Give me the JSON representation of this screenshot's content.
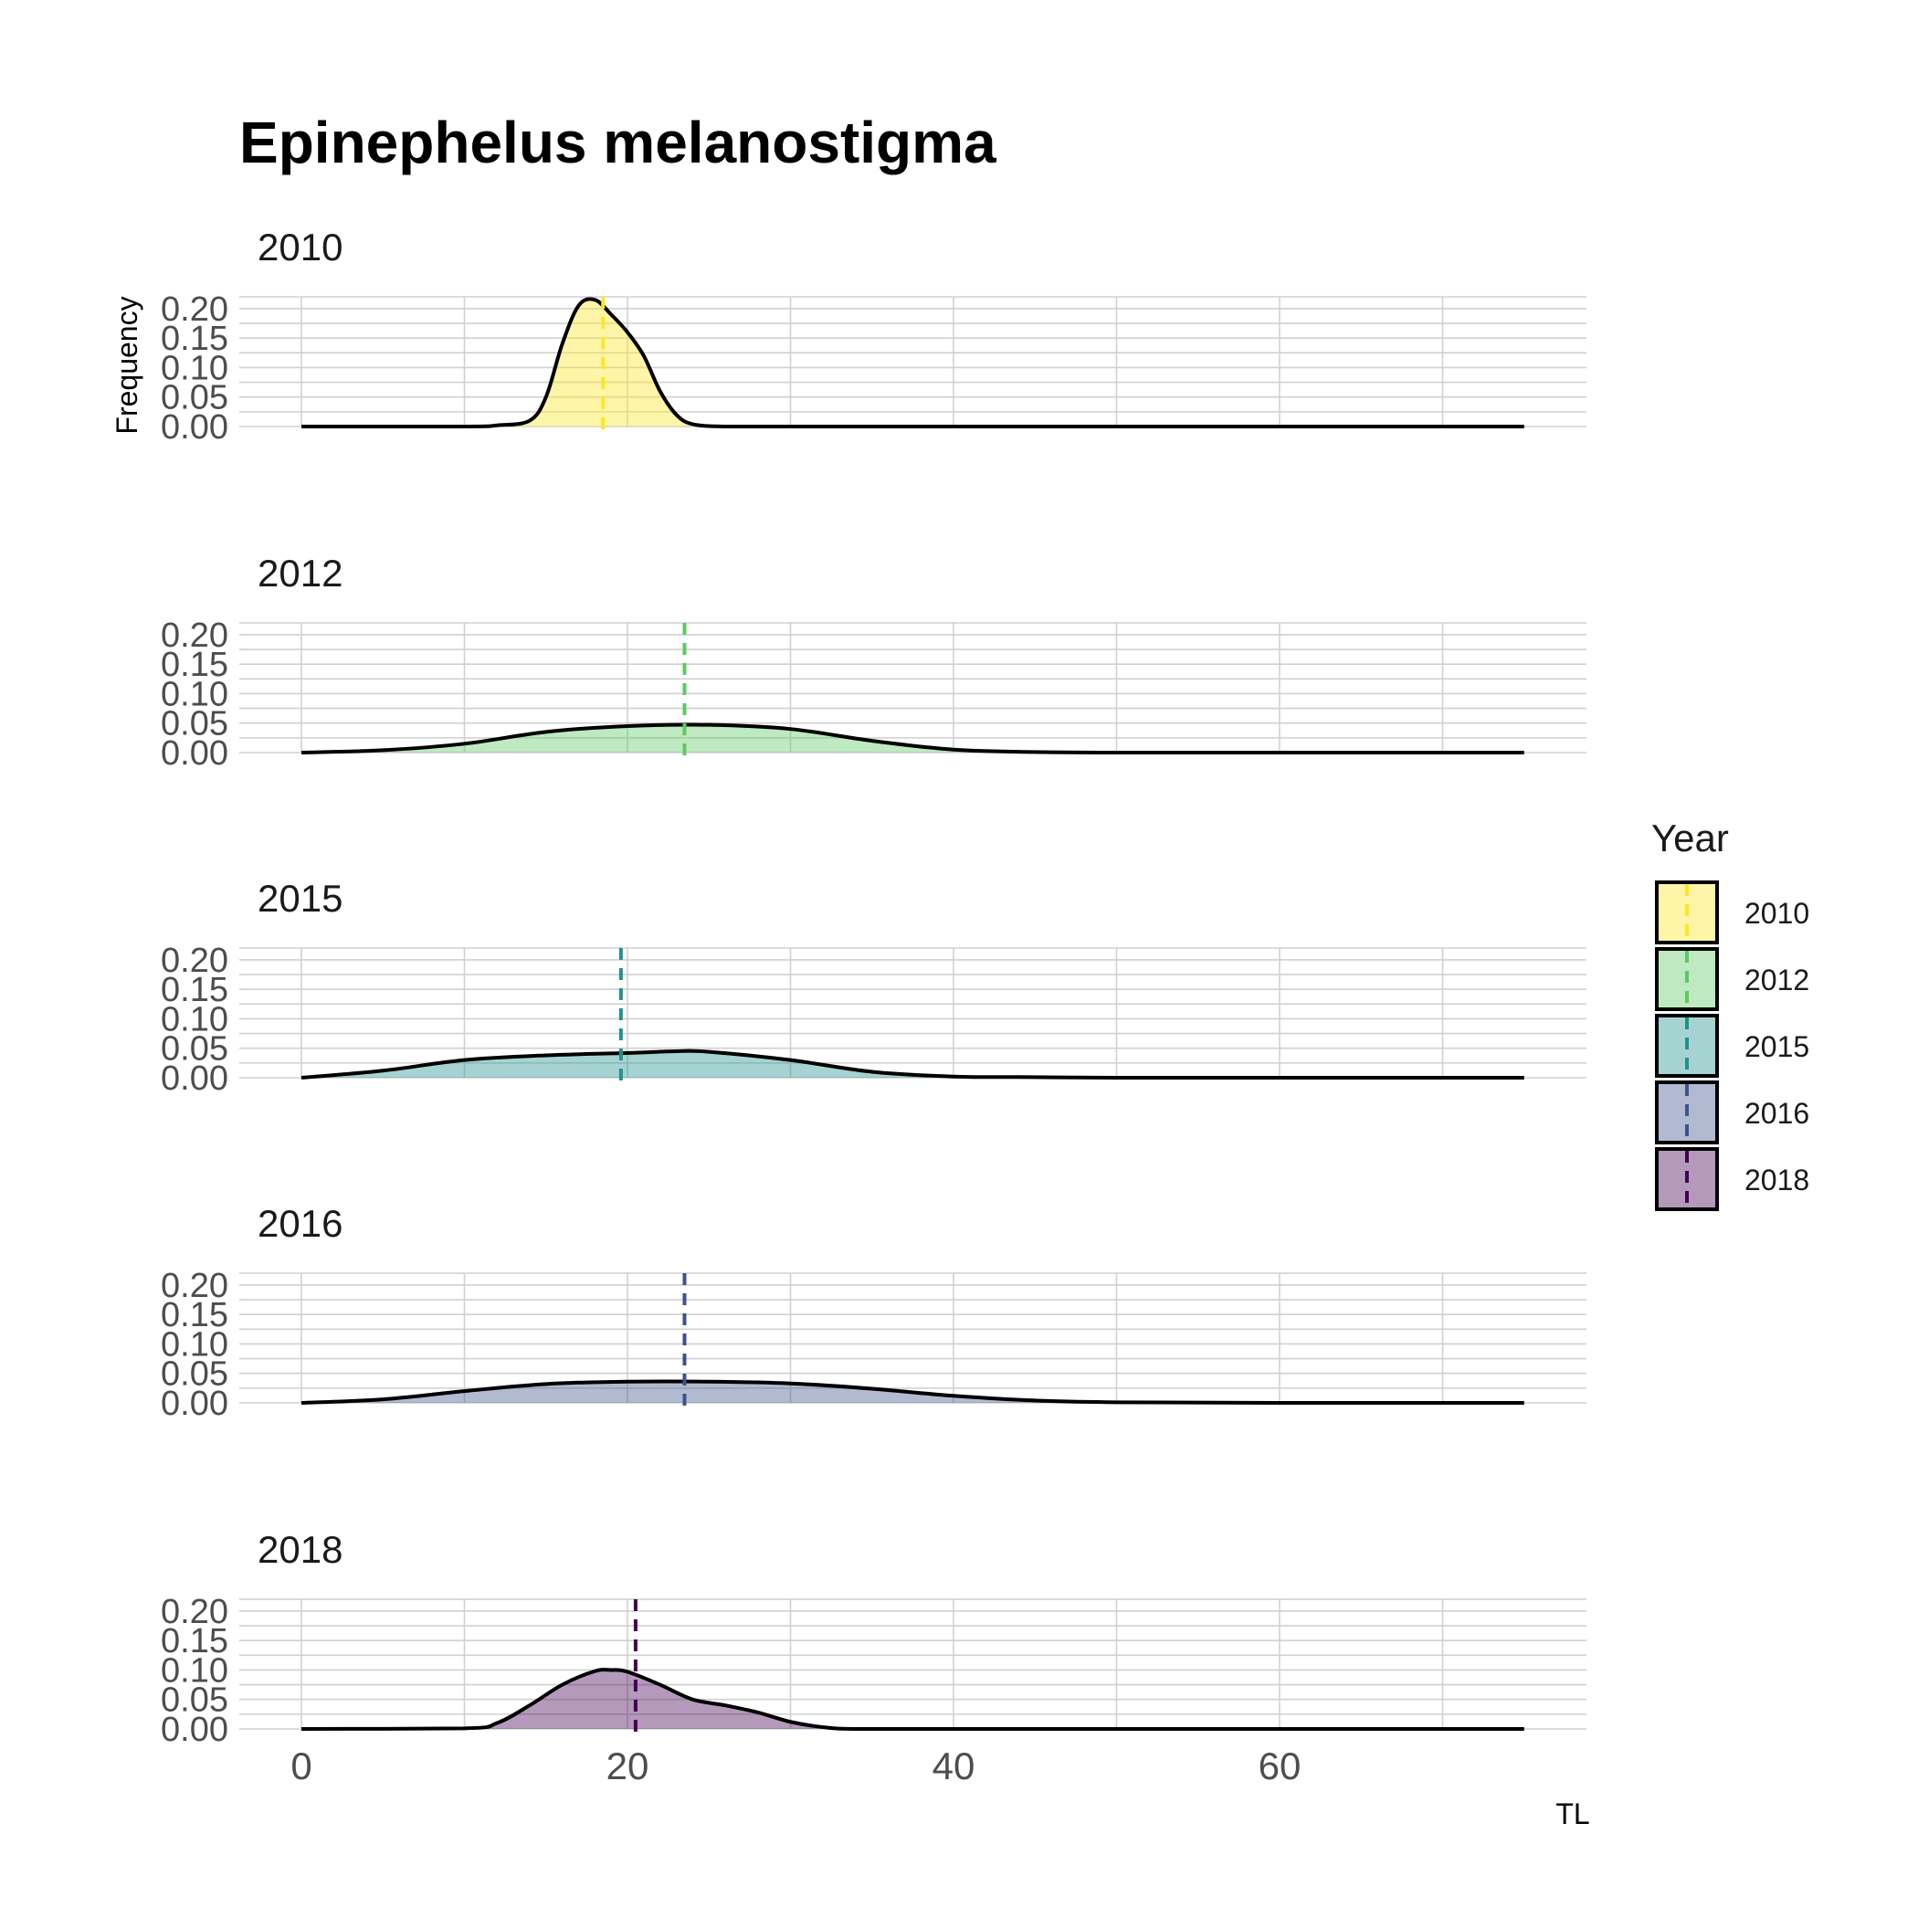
{
  "chart_data": {
    "type": "area",
    "title": "Epinephelus melanostigma",
    "xlabel": "TL",
    "ylabel": "Frequency",
    "xlim": [
      -4,
      79
    ],
    "ylim": [
      0,
      0.22
    ],
    "x_ticks": [
      "0",
      "20",
      "40",
      "60"
    ],
    "y_ticks": [
      "0.00",
      "0.05",
      "0.10",
      "0.15",
      "0.20"
    ],
    "legend": {
      "title": "Year",
      "position": "right",
      "items": [
        "2010",
        "2012",
        "2015",
        "2016",
        "2018"
      ]
    },
    "series": [
      {
        "name": "2010",
        "fill": "#FDE725",
        "line": "#FDE725",
        "mean": 18.5,
        "x": [
          0,
          10,
          12,
          14,
          15,
          16,
          17,
          18,
          19,
          20,
          21,
          22,
          23,
          24,
          26,
          30,
          40,
          60,
          75
        ],
        "y": [
          0,
          0,
          0.002,
          0.01,
          0.05,
          0.14,
          0.205,
          0.215,
          0.19,
          0.16,
          0.12,
          0.06,
          0.02,
          0.004,
          0,
          0,
          0,
          0,
          0
        ]
      },
      {
        "name": "2012",
        "fill": "#5EC962",
        "line": "#5EC962",
        "mean": 23.5,
        "x": [
          0,
          5,
          10,
          15,
          20,
          25,
          30,
          35,
          40,
          45,
          50,
          60,
          75
        ],
        "y": [
          0,
          0.004,
          0.015,
          0.035,
          0.045,
          0.047,
          0.04,
          0.02,
          0.005,
          0.001,
          0,
          0,
          0
        ]
      },
      {
        "name": "2015",
        "fill": "#21918C",
        "line": "#21918C",
        "mean": 19.6,
        "x": [
          0,
          5,
          10,
          15,
          20,
          23,
          25,
          30,
          35,
          40,
          45,
          50,
          60,
          75
        ],
        "y": [
          0,
          0.012,
          0.03,
          0.038,
          0.042,
          0.045,
          0.044,
          0.03,
          0.01,
          0.002,
          0.001,
          0,
          0,
          0
        ]
      },
      {
        "name": "2016",
        "fill": "#3B528B",
        "line": "#3B528B",
        "mean": 23.5,
        "x": [
          0,
          5,
          10,
          15,
          20,
          25,
          30,
          35,
          40,
          45,
          50,
          60,
          75
        ],
        "y": [
          0,
          0.006,
          0.02,
          0.032,
          0.036,
          0.036,
          0.033,
          0.024,
          0.012,
          0.004,
          0.001,
          0,
          0
        ]
      },
      {
        "name": "2018",
        "fill": "#440154",
        "line": "#440154",
        "mean": 20.5,
        "x": [
          0,
          10,
          12,
          14,
          16,
          18,
          19,
          20,
          22,
          24,
          26,
          28,
          30,
          32,
          34,
          40,
          60,
          75
        ],
        "y": [
          0,
          0.001,
          0.01,
          0.04,
          0.075,
          0.098,
          0.1,
          0.097,
          0.075,
          0.05,
          0.04,
          0.028,
          0.012,
          0.003,
          0,
          0,
          0,
          0
        ]
      }
    ]
  }
}
